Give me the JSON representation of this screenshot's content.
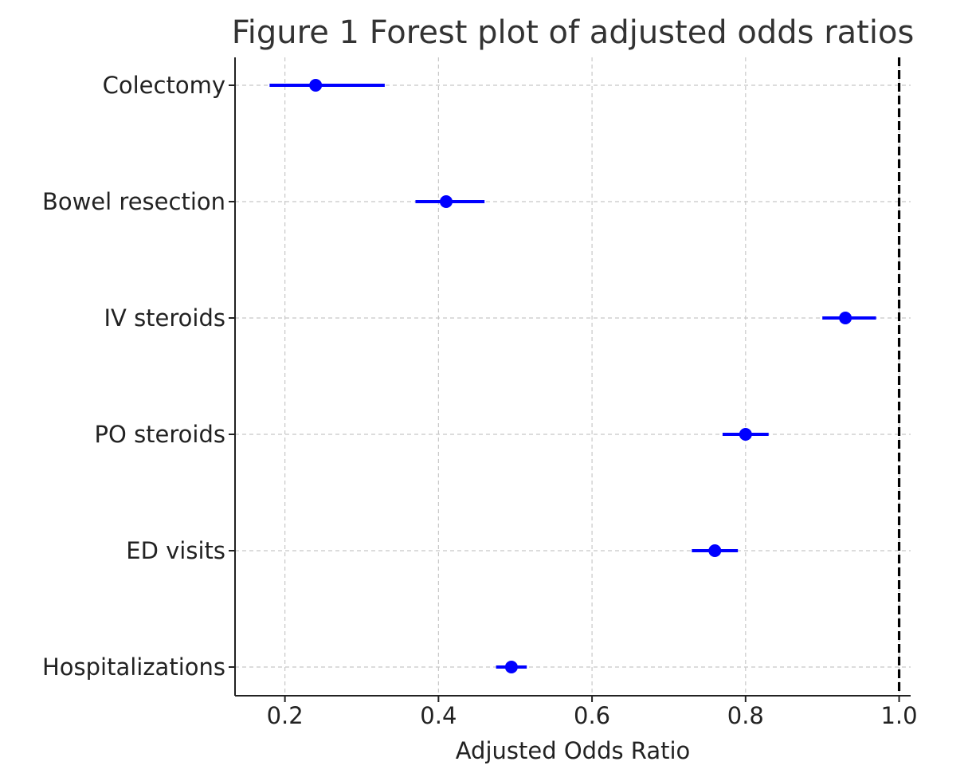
{
  "chart_data": {
    "type": "forest",
    "title": "Figure 1 Forest plot of adjusted odds ratios",
    "xlabel": "Adjusted Odds Ratio",
    "ylabel": "",
    "xlim": [
      0.135,
      1.015
    ],
    "xticks": [
      "0.2",
      "0.4",
      "0.6",
      "0.8",
      "1.0"
    ],
    "grid": true,
    "reference_line": 1.0,
    "categories": [
      "Colectomy",
      "Bowel resection",
      "IV steroids",
      "PO steroids",
      "ED visits",
      "Hospitalizations"
    ],
    "points": [
      {
        "label": "Colectomy",
        "or": 0.24,
        "ci_low": 0.18,
        "ci_high": 0.33
      },
      {
        "label": "Bowel resection",
        "or": 0.41,
        "ci_low": 0.37,
        "ci_high": 0.46
      },
      {
        "label": "IV steroids",
        "or": 0.93,
        "ci_low": 0.9,
        "ci_high": 0.97
      },
      {
        "label": "PO steroids",
        "or": 0.8,
        "ci_low": 0.77,
        "ci_high": 0.83
      },
      {
        "label": "ED visits",
        "or": 0.76,
        "ci_low": 0.73,
        "ci_high": 0.79
      },
      {
        "label": "Hospitalizations",
        "or": 0.495,
        "ci_low": 0.475,
        "ci_high": 0.515
      }
    ],
    "colors": {
      "series": "#0000ff",
      "reference": "#000000",
      "grid": "#c8c8c8",
      "axis": "#222222"
    }
  }
}
